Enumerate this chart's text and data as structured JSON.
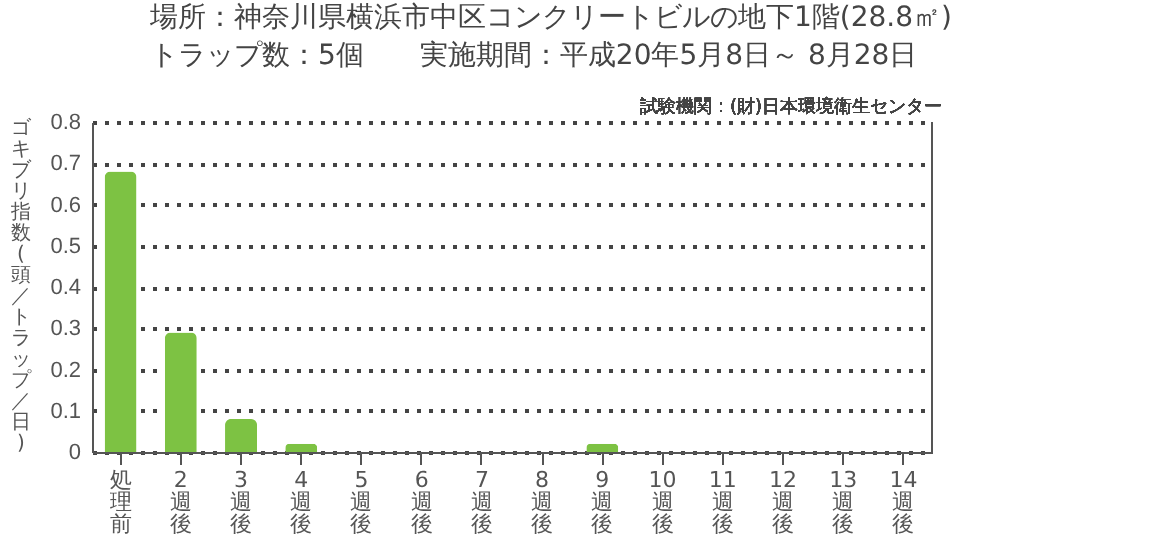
{
  "chart_data": {
    "type": "bar",
    "title": "場所：神奈川県横浜市中区コンクリートビルの地下1階(28.8㎡)",
    "subtitle": "トラップ数：5個　　実施期間：平成20年5月8日～ 8月28日",
    "annotations": [
      "試験機関：(財)日本環境衛生センター"
    ],
    "ylabel": "ゴキブリ指数(頭／トラップ／日)",
    "categories": [
      "処理前",
      "2週後",
      "3週後",
      "4週後",
      "5週後",
      "6週後",
      "7週後",
      "8週後",
      "9週後",
      "10週後",
      "11週後",
      "12週後",
      "13週後",
      "14週後"
    ],
    "values": [
      0.68,
      0.29,
      0.08,
      0.02,
      0,
      0,
      0,
      0,
      0.02,
      0,
      0,
      0,
      0,
      0
    ],
    "color": "#7dc243",
    "ylim": [
      0,
      0.8
    ],
    "yticks": [
      0,
      0.1,
      0.2,
      0.3,
      0.4,
      0.5,
      0.6,
      0.7,
      0.8
    ],
    "grid": "y"
  }
}
